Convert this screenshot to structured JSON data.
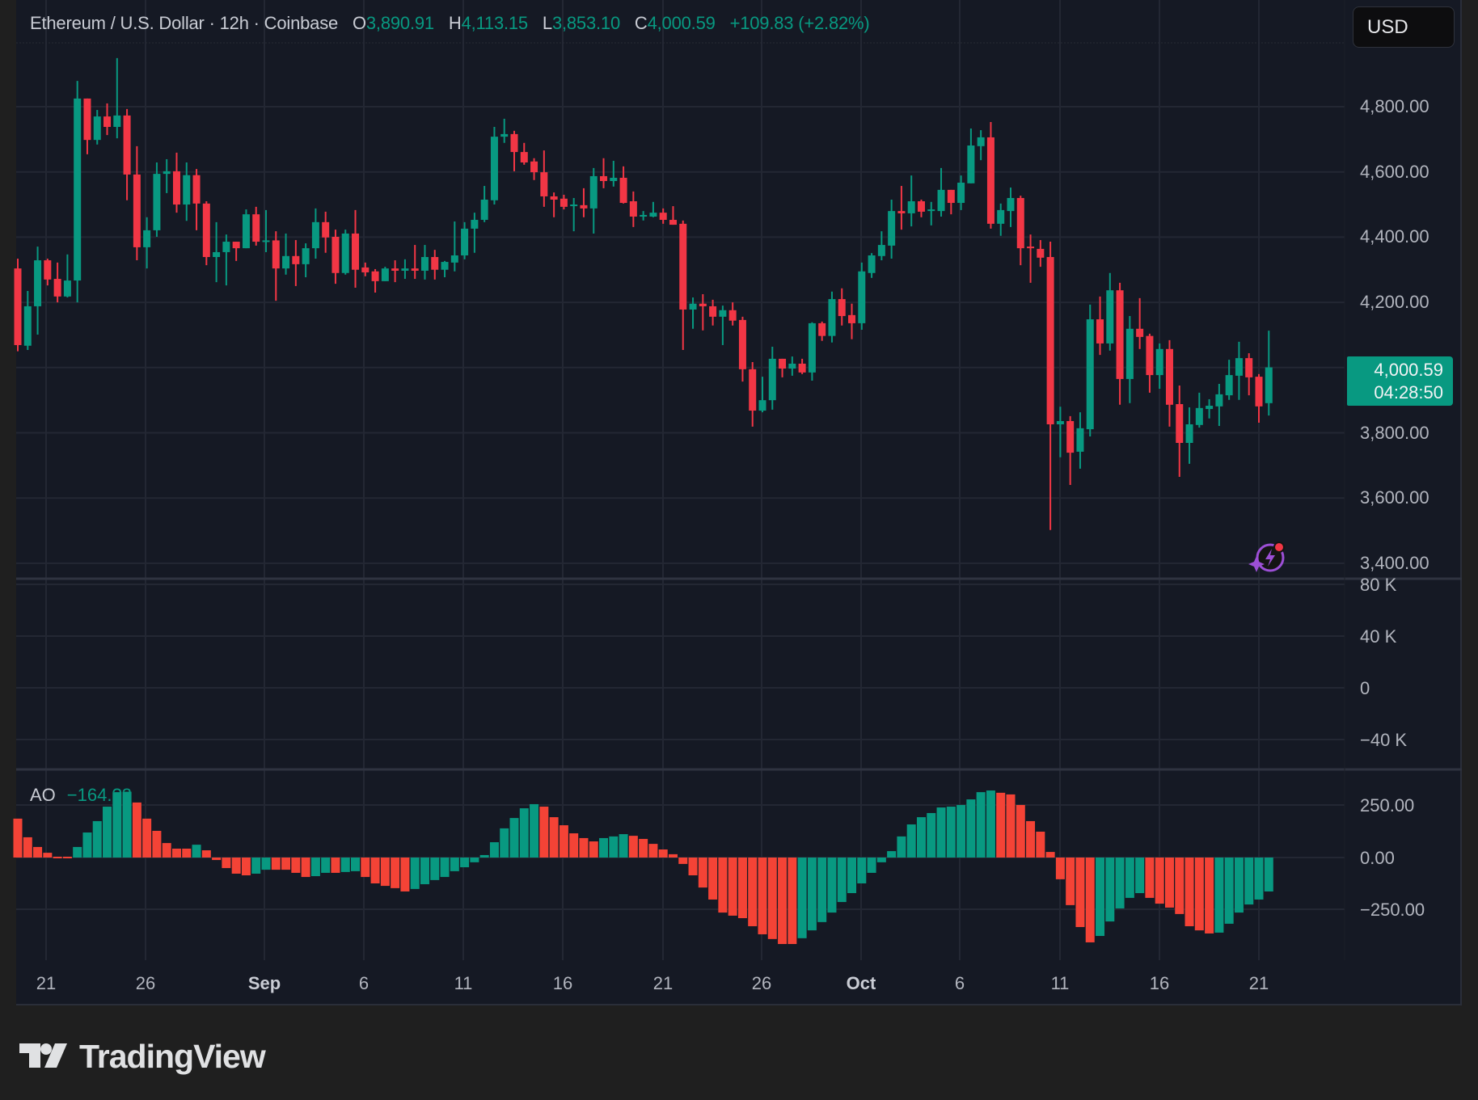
{
  "header": {
    "symbol": "Ethereum / U.S. Dollar · 12h · Coinbase",
    "open_key": "O",
    "open": "3,890.91",
    "high_key": "H",
    "high": "4,113.15",
    "low_key": "L",
    "low": "3,853.10",
    "close_key": "C",
    "close": "4,000.59",
    "change": "+109.83 (+2.82%)"
  },
  "currency_button": "USD",
  "last_price": {
    "price": "4,000.59",
    "countdown": "04:28:50"
  },
  "price_axis": [
    "4,800.00",
    "4,600.00",
    "4,400.00",
    "4,200.00",
    "3,800.00",
    "3,600.00",
    "3,400.00"
  ],
  "volume_axis": [
    "80 K",
    "40 K",
    "0",
    "−40 K"
  ],
  "ao_axis": [
    "250.00",
    "0.00",
    "−250.00"
  ],
  "ao_legend": {
    "label": "AO",
    "value": "−164.?3"
  },
  "time_axis": [
    "21",
    "26",
    "Sep",
    "6",
    "11",
    "16",
    "21",
    "26",
    "Oct",
    "6",
    "11",
    "16",
    "21"
  ],
  "brand": "TradingView",
  "colors": {
    "up": "#089981",
    "down": "#f23645",
    "ao_up": "#089981",
    "ao_down": "#f44336",
    "background": "#151924",
    "grid": "#232733",
    "page": "#1f1f1f"
  },
  "chart_data": [
    {
      "type": "candlestick",
      "title": "Ethereum / U.S. Dollar · 12h · Coinbase",
      "ylabel": "USD",
      "ylim": [
        3400,
        4800
      ],
      "y_ticks": [
        3400,
        3600,
        3800,
        4000,
        4200,
        4400,
        4600,
        4800
      ],
      "x_tick_labels": [
        "21",
        "26",
        "Sep",
        "6",
        "11",
        "16",
        "21",
        "26",
        "Oct",
        "6",
        "11",
        "16",
        "21"
      ],
      "grid": true,
      "fields": [
        "open",
        "high",
        "low",
        "close"
      ],
      "ohlc": [
        [
          4304,
          4334,
          4050,
          4069
        ],
        [
          4067,
          4235,
          4054,
          4188
        ],
        [
          4188,
          4371,
          4101,
          4329
        ],
        [
          4329,
          4334,
          4252,
          4270
        ],
        [
          4272,
          4322,
          4200,
          4218
        ],
        [
          4218,
          4347,
          4215,
          4267
        ],
        [
          4267,
          4879,
          4200,
          4825
        ],
        [
          4825,
          4825,
          4654,
          4698
        ],
        [
          4698,
          4790,
          4684,
          4770
        ],
        [
          4770,
          4810,
          4713,
          4738
        ],
        [
          4738,
          4949,
          4703,
          4773
        ],
        [
          4773,
          4793,
          4513,
          4592
        ],
        [
          4592,
          4679,
          4329,
          4369
        ],
        [
          4369,
          4461,
          4304,
          4421
        ],
        [
          4421,
          4629,
          4401,
          4594
        ],
        [
          4594,
          4639,
          4535,
          4602
        ],
        [
          4602,
          4659,
          4475,
          4500
        ],
        [
          4500,
          4629,
          4450,
          4590
        ],
        [
          4590,
          4609,
          4421,
          4503
        ],
        [
          4503,
          4510,
          4314,
          4339
        ],
        [
          4339,
          4446,
          4262,
          4354
        ],
        [
          4354,
          4408,
          4252,
          4386
        ],
        [
          4386,
          4386,
          4327,
          4366
        ],
        [
          4366,
          4485,
          4366,
          4470
        ],
        [
          4470,
          4493,
          4374,
          4386
        ],
        [
          4386,
          4483,
          4354,
          4390
        ],
        [
          4390,
          4418,
          4205,
          4304
        ],
        [
          4304,
          4411,
          4285,
          4342
        ],
        [
          4342,
          4391,
          4250,
          4317
        ],
        [
          4317,
          4381,
          4277,
          4366
        ],
        [
          4366,
          4488,
          4334,
          4446
        ],
        [
          4446,
          4478,
          4352,
          4399
        ],
        [
          4401,
          4423,
          4257,
          4290
        ],
        [
          4290,
          4423,
          4285,
          4411
        ],
        [
          4411,
          4483,
          4245,
          4300
        ],
        [
          4307,
          4322,
          4280,
          4292
        ],
        [
          4295,
          4302,
          4230,
          4265
        ],
        [
          4265,
          4309,
          4265,
          4304
        ],
        [
          4304,
          4329,
          4262,
          4297
        ],
        [
          4297,
          4332,
          4272,
          4304
        ],
        [
          4304,
          4376,
          4272,
          4297
        ],
        [
          4297,
          4376,
          4270,
          4339
        ],
        [
          4339,
          4361,
          4270,
          4300
        ],
        [
          4300,
          4327,
          4277,
          4324
        ],
        [
          4322,
          4448,
          4295,
          4344
        ],
        [
          4344,
          4446,
          4332,
          4426
        ],
        [
          4426,
          4475,
          4352,
          4453
        ],
        [
          4453,
          4557,
          4446,
          4515
        ],
        [
          4513,
          4738,
          4500,
          4708
        ],
        [
          4708,
          4763,
          4689,
          4716
        ],
        [
          4716,
          4726,
          4602,
          4661
        ],
        [
          4661,
          4689,
          4622,
          4629
        ],
        [
          4632,
          4642,
          4575,
          4599
        ],
        [
          4599,
          4666,
          4493,
          4525
        ],
        [
          4525,
          4537,
          4461,
          4515
        ],
        [
          4518,
          4530,
          4485,
          4493
        ],
        [
          4495,
          4520,
          4418,
          4500
        ],
        [
          4498,
          4550,
          4461,
          4488
        ],
        [
          4488,
          4612,
          4411,
          4587
        ],
        [
          4587,
          4642,
          4550,
          4572
        ],
        [
          4572,
          4634,
          4555,
          4582
        ],
        [
          4582,
          4617,
          4503,
          4505
        ],
        [
          4510,
          4540,
          4431,
          4463
        ],
        [
          4463,
          4480,
          4451,
          4468
        ],
        [
          4463,
          4508,
          4461,
          4475
        ],
        [
          4475,
          4488,
          4441,
          4453
        ],
        [
          4453,
          4495,
          4438,
          4438
        ],
        [
          4441,
          4451,
          4054,
          4178
        ],
        [
          4178,
          4215,
          4119,
          4196
        ],
        [
          4196,
          4225,
          4114,
          4188
        ],
        [
          4188,
          4208,
          4129,
          4156
        ],
        [
          4156,
          4190,
          4069,
          4176
        ],
        [
          4176,
          4200,
          4129,
          4144
        ],
        [
          4146,
          4156,
          3957,
          3995
        ],
        [
          3995,
          4017,
          3819,
          3868
        ],
        [
          3868,
          3972,
          3863,
          3900
        ],
        [
          3900,
          4064,
          3871,
          4027
        ],
        [
          4027,
          4027,
          3970,
          3997
        ],
        [
          3997,
          4034,
          3975,
          4012
        ],
        [
          4012,
          4027,
          3980,
          3985
        ],
        [
          3985,
          4139,
          3960,
          4136
        ],
        [
          4136,
          4141,
          4082,
          4097
        ],
        [
          4097,
          4233,
          4077,
          4210
        ],
        [
          4210,
          4243,
          4129,
          4158
        ],
        [
          4161,
          4196,
          4087,
          4136
        ],
        [
          4136,
          4322,
          4116,
          4295
        ],
        [
          4290,
          4351,
          4275,
          4344
        ],
        [
          4342,
          4418,
          4329,
          4376
        ],
        [
          4374,
          4515,
          4334,
          4480
        ],
        [
          4480,
          4557,
          4423,
          4473
        ],
        [
          4473,
          4589,
          4433,
          4510
        ],
        [
          4510,
          4515,
          4461,
          4478
        ],
        [
          4480,
          4508,
          4436,
          4485
        ],
        [
          4480,
          4612,
          4463,
          4545
        ],
        [
          4545,
          4545,
          4470,
          4505
        ],
        [
          4505,
          4589,
          4483,
          4567
        ],
        [
          4565,
          4733,
          4565,
          4681
        ],
        [
          4679,
          4728,
          4636,
          4706
        ],
        [
          4706,
          4753,
          4426,
          4441
        ],
        [
          4441,
          4503,
          4404,
          4483
        ],
        [
          4480,
          4552,
          4431,
          4520
        ],
        [
          4520,
          4527,
          4314,
          4366
        ],
        [
          4371,
          4408,
          4260,
          4366
        ],
        [
          4364,
          4391,
          4309,
          4337
        ],
        [
          4339,
          4386,
          3502,
          3826
        ],
        [
          3826,
          3880,
          3725,
          3836
        ],
        [
          3836,
          3851,
          3640,
          3739
        ],
        [
          3742,
          3863,
          3690,
          3814
        ],
        [
          3811,
          4193,
          3789,
          4148
        ],
        [
          4148,
          4218,
          4039,
          4074
        ],
        [
          4074,
          4290,
          4052,
          4237
        ],
        [
          4237,
          4260,
          3886,
          3965
        ],
        [
          3965,
          4158,
          3891,
          4119
        ],
        [
          4119,
          4213,
          4057,
          4094
        ],
        [
          4097,
          4104,
          3923,
          3977
        ],
        [
          3977,
          4074,
          3935,
          4057
        ],
        [
          4057,
          4084,
          3819,
          3886
        ],
        [
          3888,
          3945,
          3665,
          3769
        ],
        [
          3769,
          3878,
          3705,
          3826
        ],
        [
          3824,
          3923,
          3816,
          3876
        ],
        [
          3873,
          3903,
          3844,
          3883
        ],
        [
          3881,
          3950,
          3821,
          3918
        ],
        [
          3915,
          4024,
          3901,
          3977
        ],
        [
          3975,
          4079,
          3901,
          4029
        ],
        [
          4029,
          4044,
          3915,
          3970
        ],
        [
          3972,
          3980,
          3831,
          3881
        ],
        [
          3890.91,
          4113.15,
          3853.1,
          4000.59
        ]
      ]
    },
    {
      "type": "bar",
      "title": "Volume",
      "ylim": [
        -40000,
        80000
      ],
      "y_tick_labels": [
        "80 K",
        "40 K",
        "0",
        "−40 K"
      ],
      "values": []
    },
    {
      "type": "bar",
      "title": "AO",
      "ylim": [
        -250,
        250
      ],
      "y_tick_labels": [
        "250.00",
        "0.00",
        "−250.00"
      ],
      "values": [
        188,
        98,
        51,
        23,
        4,
        4,
        51,
        121,
        176,
        246,
        316,
        318,
        266,
        188,
        129,
        70,
        43,
        43,
        62,
        35,
        -12,
        -51,
        -78,
        -86,
        -78,
        -59,
        -59,
        -59,
        -74,
        -94,
        -90,
        -74,
        -74,
        -70,
        -66,
        -94,
        -125,
        -137,
        -148,
        -164,
        -152,
        -129,
        -109,
        -94,
        -66,
        -47,
        -23,
        12,
        74,
        141,
        191,
        238,
        258,
        246,
        195,
        156,
        117,
        94,
        78,
        94,
        102,
        113,
        105,
        90,
        66,
        39,
        16,
        -31,
        -86,
        -145,
        -203,
        -266,
        -281,
        -293,
        -332,
        -371,
        -394,
        -418,
        -418,
        -390,
        -352,
        -312,
        -266,
        -215,
        -172,
        -125,
        -74,
        -23,
        31,
        102,
        160,
        195,
        215,
        242,
        246,
        254,
        281,
        316,
        324,
        313,
        305,
        254,
        176,
        125,
        27,
        -105,
        -230,
        -336,
        -410,
        -379,
        -309,
        -246,
        -195,
        -172,
        -195,
        -223,
        -242,
        -273,
        -332,
        -352,
        -367,
        -363,
        -320,
        -266,
        -227,
        -203,
        -164
      ],
      "colors": "green when value rises vs previous bar, red when it falls"
    }
  ]
}
